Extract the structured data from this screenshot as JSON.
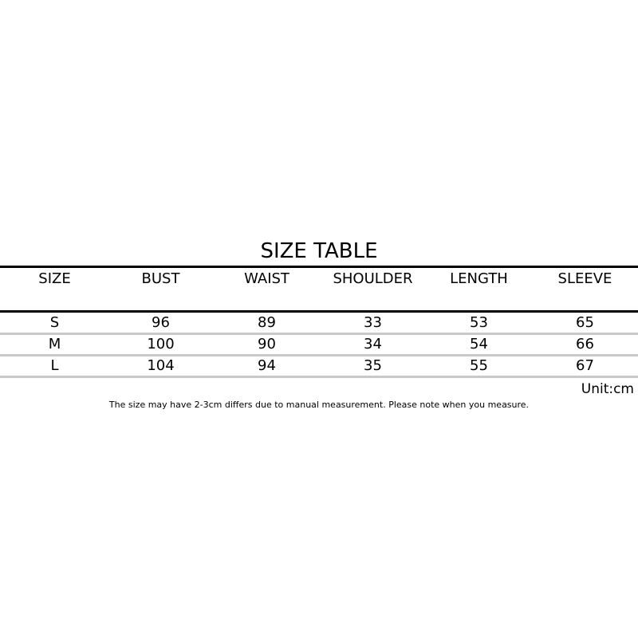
{
  "title": "SIZE TABLE",
  "headers": [
    "SIZE",
    "BUST",
    "WAIST",
    "SHOULDER",
    "LENGTH",
    "SLEEVE"
  ],
  "rows": [
    [
      "S",
      "96",
      "89",
      "33",
      "53",
      "65"
    ],
    [
      "M",
      "100",
      "90",
      "34",
      "54",
      "66"
    ],
    [
      "L",
      "104",
      "94",
      "35",
      "55",
      "67"
    ]
  ],
  "unit": "Unit:cm",
  "note": "The size may have 2-3cm differs due to manual measurement. Please note when you measure."
}
